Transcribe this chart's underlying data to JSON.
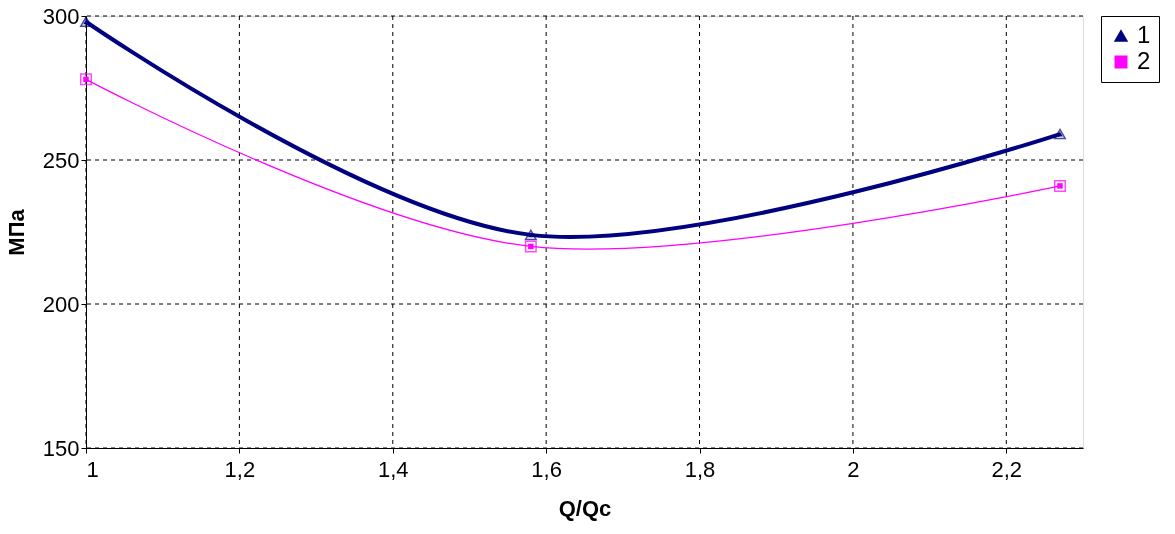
{
  "chart_data": {
    "type": "line",
    "xlabel": "Q/Qc",
    "ylabel": "МПа",
    "x": [
      1,
      1.58,
      2.27
    ],
    "series": [
      {
        "name": "1",
        "color": "#000080",
        "marker": "triangle",
        "values": [
          298,
          224,
          259
        ]
      },
      {
        "name": "2",
        "color": "#ff00ff",
        "marker": "square",
        "values": [
          278,
          220,
          241
        ]
      }
    ],
    "xlim": [
      1,
      2.3
    ],
    "xticks": [
      1,
      {
        "value": 1.2,
        "label": "1,2"
      },
      {
        "value": 1.4,
        "label": "1,4"
      },
      {
        "value": 1.6,
        "label": "1,6"
      },
      {
        "value": 1.8,
        "label": "1,8"
      },
      2,
      {
        "value": 2.2,
        "label": "2,2"
      }
    ],
    "ylim": [
      150,
      300
    ],
    "yticks": [
      150,
      200,
      250,
      300
    ],
    "grid": true,
    "legend": "right",
    "line_style": "solid"
  }
}
